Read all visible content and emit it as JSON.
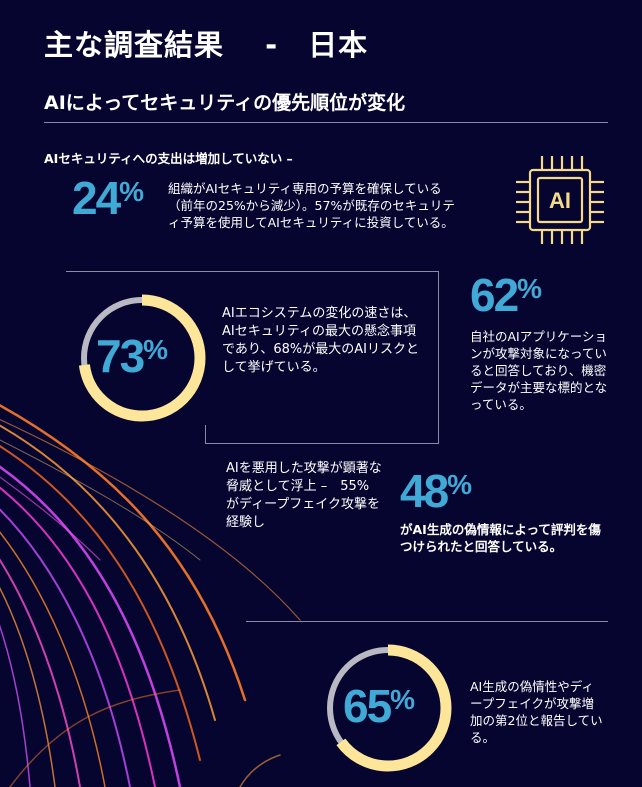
{
  "header": {
    "title": "主な調査結果　 -　日本",
    "subtitle": "AIによってセキュリティの優先順位が変化"
  },
  "stats": {
    "s24": {
      "lead": "AIセキュリティへの支出は増加していない –",
      "value": "24",
      "unit": "%",
      "text": "組織がAIセキュリティ専用の予算を確保している（前年の25%から減少）。57%が既存のセキュリティ予算を使用してAIセキュリティに投資している。"
    },
    "s73": {
      "value": "73",
      "unit": "%",
      "ring_fraction": 0.73,
      "text": "AIエコシステムの変化の速さは、AIセキュリティの最大の懸念事項であり、68%が最大のAIリスクとして挙げている。"
    },
    "s62": {
      "value": "62",
      "unit": "%",
      "text": "自社のAIアプリケーションが攻撃対象になっていると回答しており、機密データが主要な標的となっている。"
    },
    "s48": {
      "value": "48",
      "unit": "%",
      "left_text": "AIを悪用した攻撃が顕著な脅威として浮上 –　55%がディープフェイク攻撃を経験し",
      "text": "がAI生成の偽情報によって評判を傷つけられたと回答している。"
    },
    "s65": {
      "value": "65",
      "unit": "%",
      "ring_fraction": 0.65,
      "text": "AI生成の偽情性やディープフェイクが攻撃増加の第2位と報告している。"
    }
  },
  "chip": {
    "label": "AI",
    "icon": "ai-chip-icon"
  },
  "colors": {
    "background": "#050530",
    "accent_blue": "#41a9d6",
    "ring_yellow": "#fde59a",
    "ring_gray": "#b9b9c4",
    "chip_yellow": "#f5d98c"
  }
}
